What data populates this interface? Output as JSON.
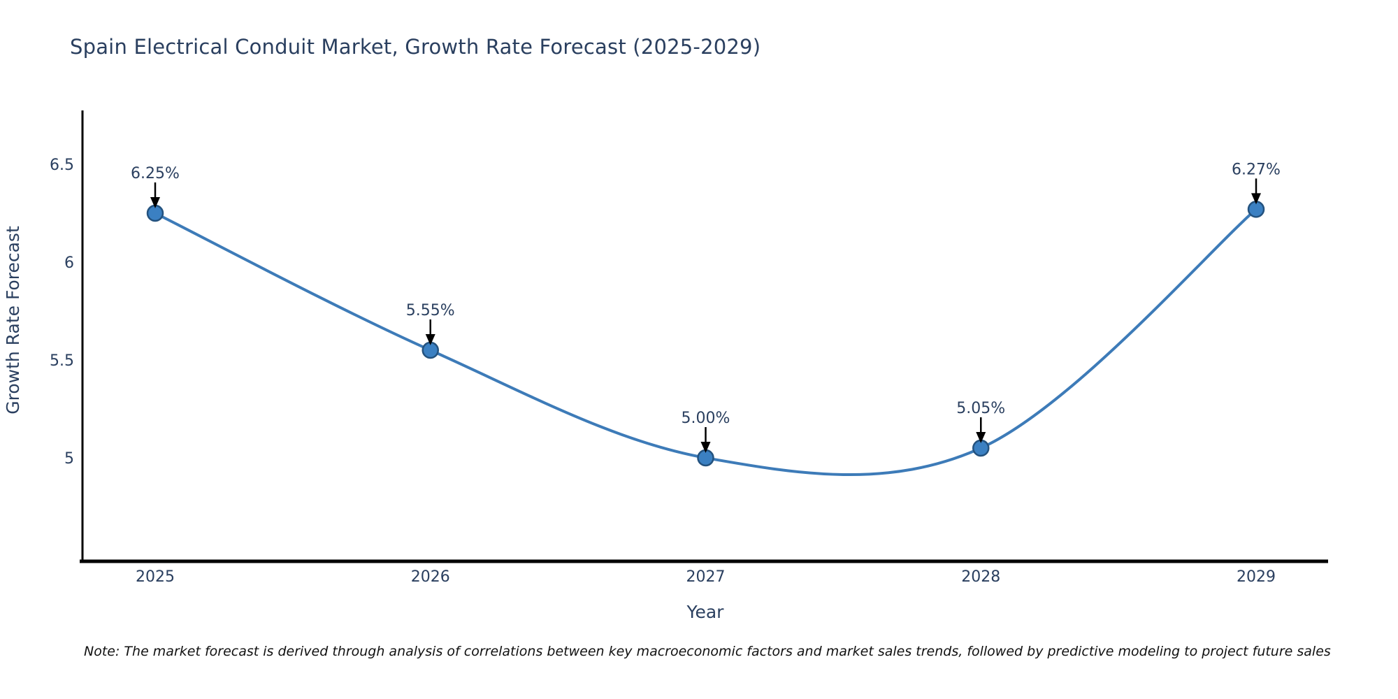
{
  "chart_data": {
    "type": "line",
    "title": "Spain Electrical Conduit Market, Growth Rate Forecast (2025-2029)",
    "xlabel": "Year",
    "ylabel": "Growth Rate Forecast",
    "categories": [
      "2025",
      "2026",
      "2027",
      "2028",
      "2029"
    ],
    "series": [
      {
        "name": "Growth Rate Forecast",
        "values": [
          6.25,
          5.55,
          5.0,
          5.05,
          6.27
        ]
      }
    ],
    "point_labels": [
      "6.25%",
      "5.55%",
      "5.00%",
      "5.05%",
      "6.27%"
    ],
    "yticks": [
      6.5,
      6.0,
      5.5,
      5.0
    ],
    "ytick_labels": [
      "6.5",
      "6",
      "5.5",
      "5"
    ],
    "ylim": [
      4.47,
      6.77
    ],
    "grid": false,
    "legend": "none",
    "line_shape": "spline",
    "colors": {
      "line": "#3d7bb8",
      "marker_fill": "#3b80c2",
      "marker_edge": "#24527e",
      "text": "#2a3f5f",
      "axis": "#000000",
      "arrow": "#000000"
    }
  },
  "footnote": "Note: The market forecast is derived through analysis of correlations between key macroeconomic factors and market sales trends, followed by predictive modeling to project future sales"
}
